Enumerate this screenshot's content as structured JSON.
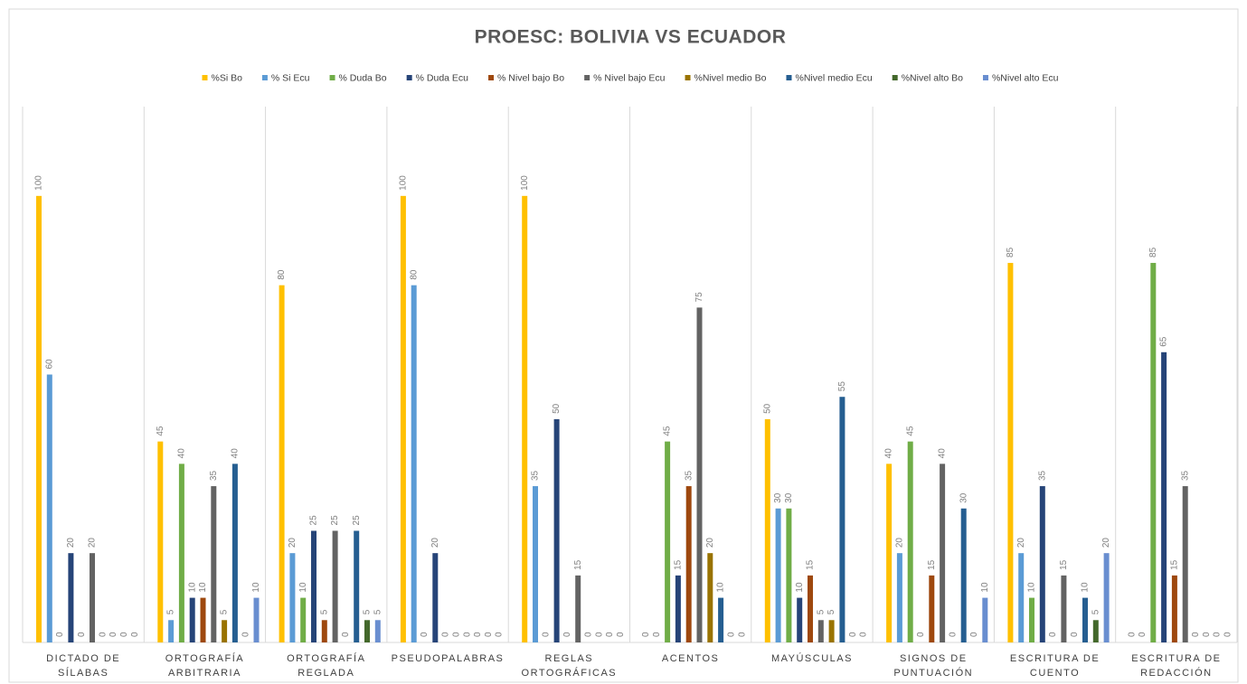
{
  "chart_data": {
    "type": "bar",
    "title": "PROESC: BOLIVIA VS ECUADOR",
    "categories": [
      "DICTADO DE SÍLABAS",
      "ORTOGRAFÍA ARBITRARIA",
      "ORTOGRAFÍA REGLADA",
      "PSEUDOPALABRAS",
      "REGLAS ORTOGRÁFICAS",
      "ACENTOS",
      "MAYÚSCULAS",
      "SIGNOS DE PUNTUACIÓN",
      "ESCRITURA DE CUENTO",
      "ESCRITURA DE REDACCIÓN"
    ],
    "series": [
      {
        "name": "%Si Bo",
        "color": "#ffc000",
        "values": [
          100,
          45,
          80,
          100,
          100,
          0,
          50,
          40,
          85,
          0
        ]
      },
      {
        "name": "% Si Ecu",
        "color": "#5b9bd5",
        "values": [
          60,
          5,
          20,
          80,
          35,
          0,
          30,
          20,
          20,
          0
        ]
      },
      {
        "name": "% Duda Bo",
        "color": "#70ad47",
        "values": [
          0,
          40,
          10,
          0,
          0,
          45,
          30,
          45,
          10,
          85
        ]
      },
      {
        "name": "% Duda Ecu",
        "color": "#264478",
        "values": [
          20,
          10,
          25,
          20,
          50,
          15,
          10,
          0,
          35,
          65
        ]
      },
      {
        "name": "% Nivel bajo Bo",
        "color": "#9e480e",
        "values": [
          0,
          10,
          5,
          0,
          0,
          35,
          15,
          15,
          0,
          15
        ]
      },
      {
        "name": "% Nivel bajo Ecu",
        "color": "#636363",
        "values": [
          20,
          35,
          25,
          0,
          15,
          75,
          5,
          40,
          15,
          35
        ]
      },
      {
        "name": "%Nivel medio Bo",
        "color": "#997300",
        "values": [
          0,
          5,
          0,
          0,
          0,
          20,
          5,
          0,
          0,
          0
        ]
      },
      {
        "name": "%Nivel medio Ecu",
        "color": "#255e91",
        "values": [
          0,
          40,
          25,
          0,
          0,
          10,
          55,
          30,
          10,
          0
        ]
      },
      {
        "name": "%Nivel alto Bo",
        "color": "#43682b",
        "values": [
          0,
          0,
          5,
          0,
          0,
          0,
          0,
          0,
          5,
          0
        ]
      },
      {
        "name": "%Nivel alto Ecu",
        "color": "#698ed0",
        "values": [
          0,
          10,
          5,
          0,
          0,
          0,
          0,
          10,
          20,
          0
        ]
      }
    ],
    "ylim": [
      0,
      120
    ]
  }
}
